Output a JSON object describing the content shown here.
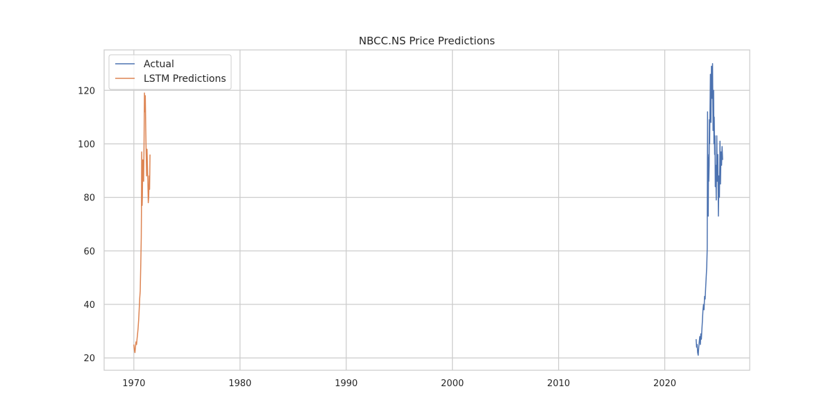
{
  "chart_data": {
    "type": "line",
    "title": "NBCC.NS Price Predictions",
    "xlabel": "",
    "ylabel": "",
    "xlim": [
      1967.2,
      2028.0
    ],
    "ylim": [
      15.4,
      135.1
    ],
    "x_ticks": [
      1970,
      1980,
      1990,
      2000,
      2010,
      2020
    ],
    "y_ticks": [
      20,
      40,
      60,
      80,
      100,
      120
    ],
    "grid": true,
    "legend_position": "upper-left",
    "series": [
      {
        "name": "Actual",
        "color": "#4c72b0",
        "x": [
          2022.95,
          2023.0,
          2023.05,
          2023.1,
          2023.15,
          2023.2,
          2023.25,
          2023.3,
          2023.35,
          2023.4,
          2023.45,
          2023.5,
          2023.55,
          2023.6,
          2023.65,
          2023.7,
          2023.75,
          2023.8,
          2023.85,
          2023.9,
          2023.95,
          2024.0,
          2024.03,
          2024.06,
          2024.08,
          2024.1,
          2024.12,
          2024.15,
          2024.18,
          2024.2,
          2024.23,
          2024.26,
          2024.3,
          2024.35,
          2024.4,
          2024.45,
          2024.5,
          2024.55,
          2024.6,
          2024.63,
          2024.66,
          2024.7,
          2024.73,
          2024.76,
          2024.8,
          2024.85,
          2024.9,
          2024.95,
          2025.0,
          2025.05,
          2025.1,
          2025.15,
          2025.2,
          2025.25,
          2025.3,
          2025.35,
          2025.4,
          2025.45
        ],
        "values": [
          27,
          24,
          25,
          22,
          21,
          24,
          26,
          28,
          25,
          29,
          27,
          31,
          34,
          38,
          40,
          38,
          43,
          42,
          46,
          50,
          54,
          61,
          112,
          88,
          96,
          73,
          95,
          86,
          92,
          109,
          100,
          112,
          126,
          108,
          129,
          117,
          130,
          105,
          120,
          100,
          110,
          96,
          103,
          84,
          92,
          79,
          103,
          86,
          96,
          73,
          88,
          80,
          101,
          85,
          97,
          92,
          99,
          94
        ]
      },
      {
        "name": "LSTM Predictions",
        "color": "#dd8452",
        "x": [
          1970.0,
          1970.05,
          1970.1,
          1970.15,
          1970.2,
          1970.25,
          1970.3,
          1970.35,
          1970.4,
          1970.45,
          1970.5,
          1970.55,
          1970.6,
          1970.65,
          1970.7,
          1970.72,
          1970.74,
          1970.76,
          1970.78,
          1970.8,
          1970.84,
          1970.88,
          1970.92,
          1970.96,
          1971.0,
          1971.04,
          1971.08,
          1971.12,
          1971.16,
          1971.2,
          1971.24,
          1971.28,
          1971.32,
          1971.36,
          1971.4,
          1971.44,
          1971.48,
          1971.52
        ],
        "values": [
          25,
          23,
          22,
          24,
          26,
          25,
          27,
          29,
          31,
          34,
          38,
          42,
          45,
          55,
          65,
          76,
          97,
          88,
          77,
          80,
          94,
          90,
          86,
          100,
          119,
          112,
          118,
          105,
          96,
          88,
          98,
          92,
          86,
          78,
          80,
          88,
          83,
          96
        ]
      }
    ]
  }
}
